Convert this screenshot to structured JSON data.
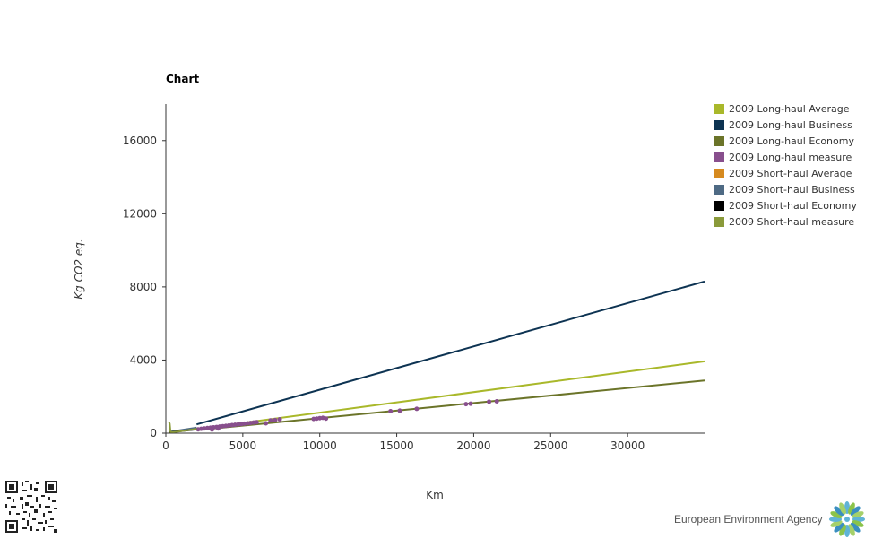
{
  "chart_data": {
    "type": "scatter",
    "title": "Chart",
    "xlabel": "Km",
    "ylabel": "Kg CO2 eq.",
    "xlim": [
      0,
      35000
    ],
    "ylim": [
      0,
      18000
    ],
    "x_ticks": [
      0,
      5000,
      10000,
      15000,
      20000,
      25000,
      30000
    ],
    "y_ticks": [
      0,
      4000,
      8000,
      12000,
      16000
    ],
    "grid": false,
    "legend_position": "right",
    "series": [
      {
        "name": "2009 Long-haul Average",
        "kind": "line",
        "color": "#a9b82a",
        "points": [
          [
            2000,
            225
          ],
          [
            35000,
            3930
          ]
        ]
      },
      {
        "name": "2009 Long-haul Business",
        "kind": "line",
        "color": "#0d3352",
        "points": [
          [
            2000,
            480
          ],
          [
            35000,
            8300
          ]
        ]
      },
      {
        "name": "2009 Long-haul Economy",
        "kind": "line",
        "color": "#6b7429",
        "points": [
          [
            2000,
            165
          ],
          [
            35000,
            2880
          ]
        ]
      },
      {
        "name": "2009 Long-haul measure",
        "kind": "scatter",
        "color": "#884f8d",
        "points": [
          [
            2100,
            210
          ],
          [
            2300,
            240
          ],
          [
            2500,
            260
          ],
          [
            2700,
            280
          ],
          [
            2900,
            300
          ],
          [
            3000,
            200
          ],
          [
            3100,
            320
          ],
          [
            3300,
            340
          ],
          [
            3400,
            260
          ],
          [
            3500,
            360
          ],
          [
            3700,
            380
          ],
          [
            3900,
            400
          ],
          [
            4100,
            420
          ],
          [
            4300,
            440
          ],
          [
            4500,
            460
          ],
          [
            4700,
            480
          ],
          [
            4900,
            500
          ],
          [
            5100,
            520
          ],
          [
            5300,
            540
          ],
          [
            5500,
            560
          ],
          [
            5700,
            580
          ],
          [
            5900,
            600
          ],
          [
            6500,
            540
          ],
          [
            6800,
            700
          ],
          [
            7100,
            720
          ],
          [
            7400,
            760
          ],
          [
            9600,
            780
          ],
          [
            9800,
            800
          ],
          [
            10000,
            820
          ],
          [
            10200,
            840
          ],
          [
            10400,
            800
          ],
          [
            14600,
            1200
          ],
          [
            15200,
            1230
          ],
          [
            16300,
            1330
          ],
          [
            19500,
            1590
          ],
          [
            19800,
            1610
          ],
          [
            21000,
            1720
          ],
          [
            21500,
            1740
          ]
        ]
      },
      {
        "name": "2009 Short-haul Average",
        "kind": "line",
        "color": "#d68a1f",
        "points": [
          [
            200,
            50
          ],
          [
            2000,
            240
          ]
        ]
      },
      {
        "name": "2009 Short-haul Business",
        "kind": "line",
        "color": "#4e6a84",
        "points": [
          [
            200,
            70
          ],
          [
            2000,
            300
          ]
        ]
      },
      {
        "name": "2009 Short-haul Economy",
        "kind": "line",
        "color": "#000000",
        "points": [
          [
            200,
            45
          ],
          [
            2000,
            210
          ]
        ]
      },
      {
        "name": "2009 Short-haul measure",
        "kind": "line",
        "color": "#8a9a3a",
        "points": [
          [
            200,
            620
          ],
          [
            250,
            520
          ],
          [
            300,
            60
          ],
          [
            500,
            60
          ],
          [
            800,
            90
          ],
          [
            1200,
            130
          ],
          [
            2000,
            230
          ]
        ]
      }
    ]
  },
  "footer": {
    "agency_name": "European Environment Agency"
  },
  "icons": {
    "qr": "qr-code-icon",
    "logo": "eea-logo-icon"
  }
}
